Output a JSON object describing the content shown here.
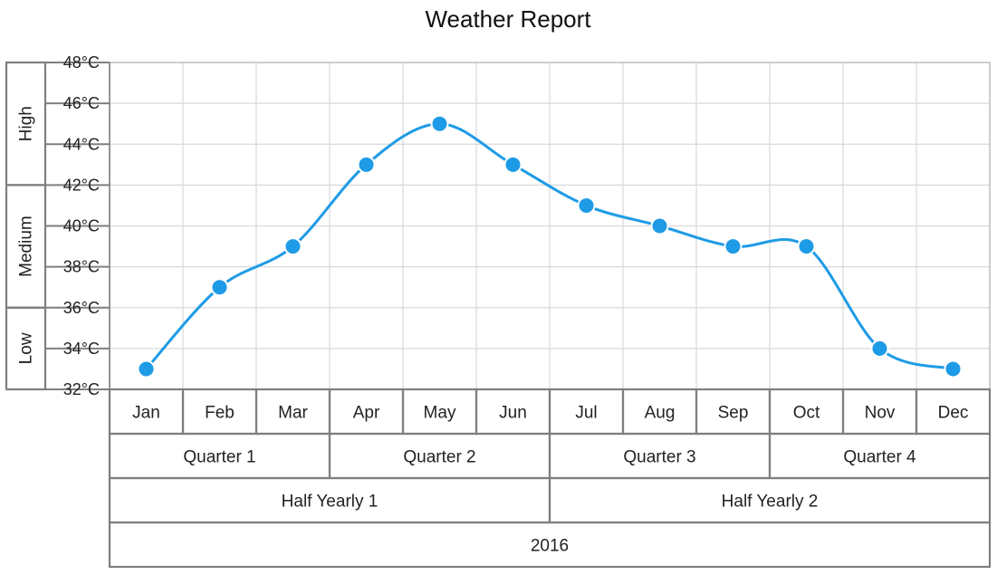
{
  "chart_data": {
    "type": "line",
    "title": "Weather Report",
    "unit": "°C",
    "ylim": [
      32,
      48
    ],
    "yticks": [
      "32°C",
      "34°C",
      "36°C",
      "38°C",
      "40°C",
      "42°C",
      "44°C",
      "46°C",
      "48°C"
    ],
    "categories": [
      "Jan",
      "Feb",
      "Mar",
      "Apr",
      "May",
      "Jun",
      "Jul",
      "Aug",
      "Sep",
      "Oct",
      "Nov",
      "Dec"
    ],
    "series": [
      {
        "values": [
          33,
          37,
          39,
          43,
          45,
          43,
          41,
          40,
          39,
          39,
          34,
          33
        ]
      }
    ],
    "line_color": "#1e9be6",
    "grid": true,
    "y_bands": [
      {
        "label": "Low",
        "from": 32,
        "to": 36
      },
      {
        "label": "Medium",
        "from": 36,
        "to": 42
      },
      {
        "label": "High",
        "from": 42,
        "to": 48
      }
    ],
    "x_groups": [
      [
        {
          "label": "Quarter 1",
          "span": 3
        },
        {
          "label": "Quarter 2",
          "span": 3
        },
        {
          "label": "Quarter 3",
          "span": 3
        },
        {
          "label": "Quarter 4",
          "span": 3
        }
      ],
      [
        {
          "label": "Half Yearly 1",
          "span": 6
        },
        {
          "label": "Half Yearly 2",
          "span": 6
        }
      ],
      [
        {
          "label": "2016",
          "span": 12
        }
      ]
    ]
  }
}
